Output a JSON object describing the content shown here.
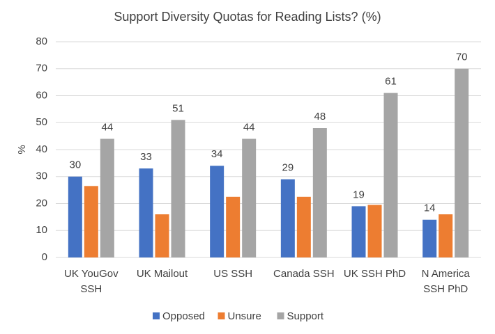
{
  "chart_data": {
    "type": "bar",
    "title": "Support Diversity Quotas for Reading Lists? (%)",
    "y_label": "%",
    "categories": [
      "UK YouGov\nSSH",
      "UK Mailout",
      "US SSH",
      "Canada SSH",
      "UK SSH PhD",
      "N America\nSSH PhD"
    ],
    "series": [
      {
        "name": "Opposed",
        "color": "#4472c4",
        "values": [
          30,
          33,
          34,
          29,
          19,
          14
        ],
        "show_labels": true
      },
      {
        "name": "Unsure",
        "color": "#ed7d31",
        "values": [
          26.5,
          16,
          22.5,
          22.5,
          19.5,
          16
        ],
        "show_labels": false
      },
      {
        "name": "Support",
        "color": "#a5a5a5",
        "values": [
          44,
          51,
          44,
          48,
          61,
          70
        ],
        "show_labels": true
      }
    ],
    "ylim": [
      0,
      80
    ],
    "yticks": [
      0,
      10,
      20,
      30,
      40,
      50,
      60,
      70,
      80
    ],
    "grid": true,
    "legend": "bottom"
  }
}
